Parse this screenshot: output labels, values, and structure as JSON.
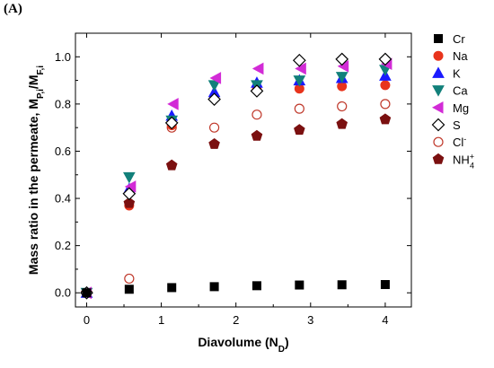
{
  "panel_label": "(A)",
  "chart_data": {
    "type": "scatter",
    "title": "",
    "xlabel": "Diavolume (N_D)",
    "ylabel": "Mass ratio in the permeate, M_P,i/M_F,i",
    "xlim": [
      -0.15,
      4.35
    ],
    "ylim": [
      -0.06,
      1.1
    ],
    "xticks": [
      0,
      1,
      2,
      3,
      4
    ],
    "yticks": [
      0.0,
      0.2,
      0.4,
      0.6,
      0.8,
      1.0
    ],
    "ytick_labels": [
      "0.0",
      "0.2",
      "0.4",
      "0.6",
      "0.8",
      "1.0"
    ],
    "grid": false,
    "legend_position": "right",
    "x": [
      0,
      0.57,
      1.14,
      1.71,
      2.28,
      2.85,
      3.42,
      4.0
    ],
    "series": [
      {
        "name": "Cr",
        "label_main": "Cr",
        "label_sup": "",
        "label_sub": "",
        "marker": "square",
        "color": "#000000",
        "filled": true,
        "values": [
          0.0,
          0.015,
          0.022,
          0.026,
          0.03,
          0.033,
          0.034,
          0.035
        ]
      },
      {
        "name": "Na",
        "label_main": "Na",
        "label_sup": "",
        "label_sub": "",
        "marker": "circle",
        "color": "#e8341c",
        "filled": true,
        "values": [
          0.0,
          0.37,
          0.71,
          0.83,
          0.86,
          0.865,
          0.875,
          0.88
        ]
      },
      {
        "name": "K",
        "label_main": "K",
        "label_sup": "",
        "label_sub": "",
        "marker": "triangle-up",
        "color": "#1a1aff",
        "filled": true,
        "values": [
          0.0,
          0.44,
          0.75,
          0.85,
          0.89,
          0.9,
          0.91,
          0.92
        ]
      },
      {
        "name": "Ca",
        "label_main": "Ca",
        "label_sup": "",
        "label_sub": "",
        "marker": "triangle-down",
        "color": "#12807a",
        "filled": true,
        "values": [
          0.0,
          0.49,
          0.73,
          0.88,
          0.88,
          0.9,
          0.915,
          0.945
        ]
      },
      {
        "name": "Mg",
        "label_main": "Mg",
        "label_sup": "",
        "label_sub": "",
        "marker": "triangle-left",
        "color": "#d22bd6",
        "filled": true,
        "values": [
          0.0,
          0.45,
          0.8,
          0.91,
          0.95,
          0.95,
          0.96,
          0.97
        ]
      },
      {
        "name": "S",
        "label_main": "S",
        "label_sup": "",
        "label_sub": "",
        "marker": "diamond",
        "color": "#000000",
        "filled": false,
        "values": [
          0.0,
          0.42,
          0.72,
          0.82,
          0.855,
          0.985,
          0.99,
          0.99
        ]
      },
      {
        "name": "Cl-",
        "label_main": "Cl",
        "label_sup": "-",
        "label_sub": "",
        "marker": "circle",
        "color": "#c0392b",
        "filled": false,
        "values": [
          0.0,
          0.06,
          0.7,
          0.7,
          0.755,
          0.78,
          0.79,
          0.8
        ]
      },
      {
        "name": "NH4+",
        "label_main": "NH",
        "label_sup": "+",
        "label_sub": "4",
        "marker": "pentagon",
        "color": "#7b1010",
        "filled": true,
        "values": [
          0.0,
          0.38,
          0.54,
          0.63,
          0.665,
          0.69,
          0.715,
          0.735
        ]
      }
    ]
  }
}
